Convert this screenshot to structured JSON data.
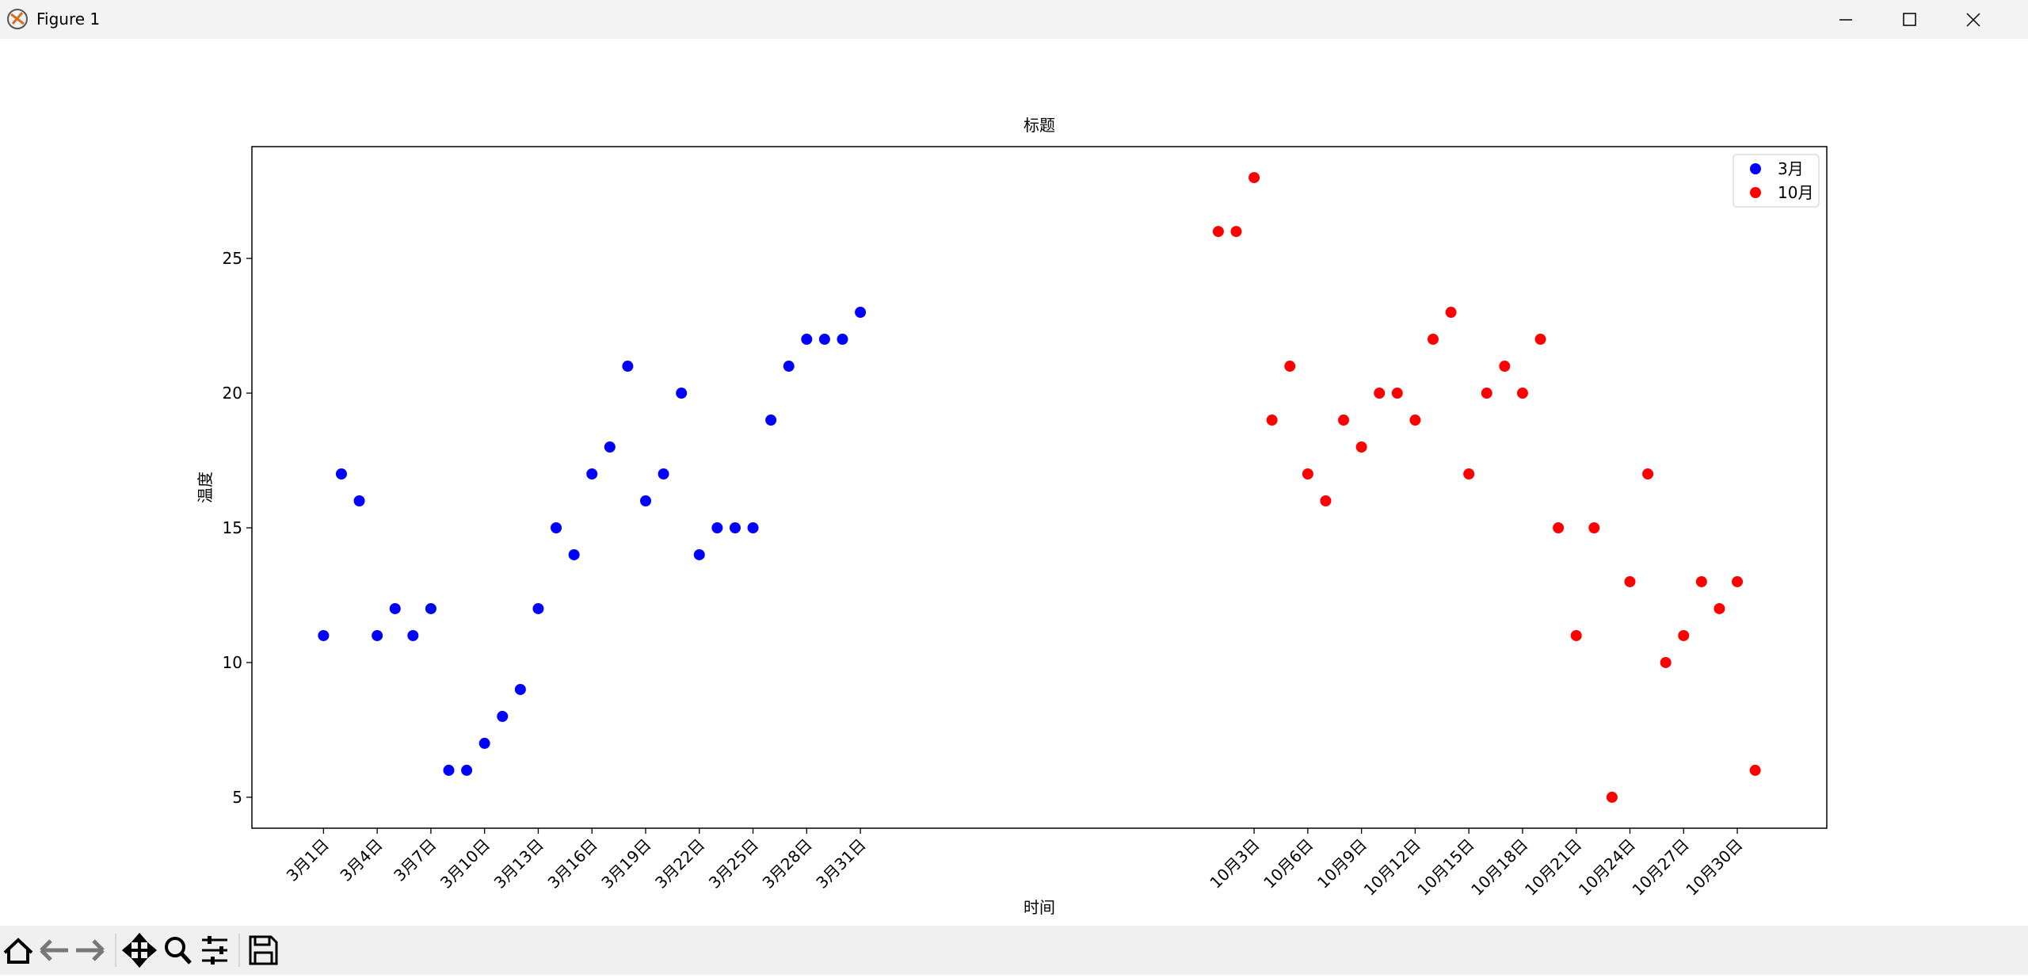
{
  "window": {
    "title": "Figure 1"
  },
  "chart_data": {
    "type": "scatter",
    "title": "标题",
    "x_label": "时间",
    "y_label": "温度",
    "xlim": [
      -3,
      85
    ],
    "ylim": [
      3.85,
      29.15
    ],
    "xticks": [
      {
        "value": 1,
        "label": "3月1日"
      },
      {
        "value": 4,
        "label": "3月4日"
      },
      {
        "value": 7,
        "label": "3月7日"
      },
      {
        "value": 10,
        "label": "3月10日"
      },
      {
        "value": 13,
        "label": "3月13日"
      },
      {
        "value": 16,
        "label": "3月16日"
      },
      {
        "value": 19,
        "label": "3月19日"
      },
      {
        "value": 22,
        "label": "3月22日"
      },
      {
        "value": 25,
        "label": "3月25日"
      },
      {
        "value": 28,
        "label": "3月28日"
      },
      {
        "value": 31,
        "label": "3月31日"
      },
      {
        "value": 53,
        "label": "10月3日"
      },
      {
        "value": 56,
        "label": "10月6日"
      },
      {
        "value": 59,
        "label": "10月9日"
      },
      {
        "value": 62,
        "label": "10月12日"
      },
      {
        "value": 65,
        "label": "10月15日"
      },
      {
        "value": 68,
        "label": "10月18日"
      },
      {
        "value": 71,
        "label": "10月21日"
      },
      {
        "value": 74,
        "label": "10月24日"
      },
      {
        "value": 77,
        "label": "10月27日"
      },
      {
        "value": 80,
        "label": "10月30日"
      }
    ],
    "yticks": [
      5,
      10,
      15,
      20,
      25
    ],
    "legend": "upper right",
    "grid": false,
    "series": [
      {
        "name": "3月",
        "color": "#0000ff",
        "x": [
          1,
          2,
          3,
          4,
          5,
          6,
          7,
          8,
          9,
          10,
          11,
          12,
          13,
          14,
          15,
          16,
          17,
          18,
          19,
          20,
          21,
          22,
          23,
          24,
          25,
          26,
          27,
          28,
          29,
          30,
          31
        ],
        "values": [
          11,
          17,
          16,
          11,
          12,
          11,
          12,
          6,
          6,
          7,
          8,
          9,
          12,
          15,
          14,
          17,
          18,
          21,
          16,
          17,
          20,
          14,
          15,
          15,
          15,
          19,
          21,
          22,
          22,
          22,
          23
        ]
      },
      {
        "name": "10月",
        "color": "#ff0000",
        "x": [
          51,
          52,
          53,
          54,
          55,
          56,
          57,
          58,
          59,
          60,
          61,
          62,
          63,
          64,
          65,
          66,
          67,
          68,
          69,
          70,
          71,
          72,
          73,
          74,
          75,
          76,
          77,
          78,
          79,
          80,
          81
        ],
        "values": [
          26,
          26,
          28,
          19,
          21,
          17,
          16,
          19,
          18,
          20,
          20,
          19,
          22,
          23,
          17,
          20,
          21,
          20,
          22,
          15,
          11,
          15,
          5,
          13,
          17,
          10,
          11,
          13,
          12,
          13,
          6
        ]
      }
    ]
  }
}
